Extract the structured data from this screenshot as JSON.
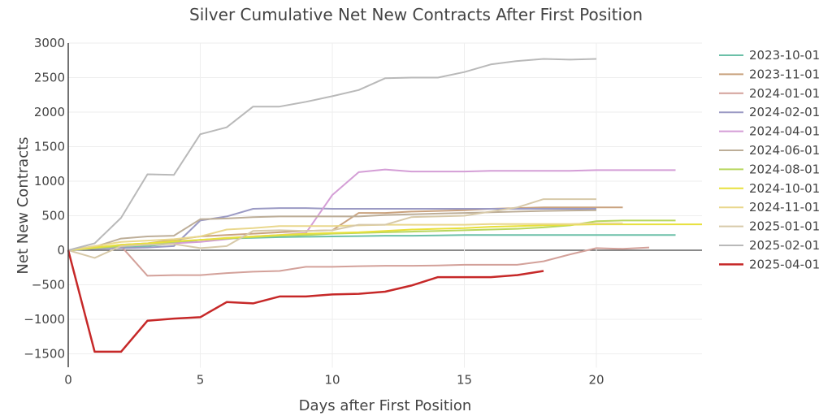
{
  "chart_data": {
    "type": "line",
    "title": "Silver Cumulative Net New Contracts After First Position",
    "xlabel": "Days after First Position",
    "ylabel": "Net New Contracts",
    "xlim": [
      0,
      24
    ],
    "ylim": [
      -1700,
      3000
    ],
    "xticks": [
      0,
      5,
      10,
      15,
      20
    ],
    "yticks": [
      -1500,
      -1000,
      -500,
      0,
      500,
      1000,
      1500,
      2000,
      2500,
      3000
    ],
    "ytick_labels": [
      "−1500",
      "−1000",
      "−500",
      "0",
      "500",
      "1000",
      "1500",
      "2000",
      "2500",
      "3000"
    ],
    "grid": true,
    "legend_position": "right",
    "series": [
      {
        "name": "2023-10-01",
        "color": "#6cc0a8",
        "values": [
          0,
          20,
          40,
          60,
          100,
          150,
          170,
          180,
          190,
          195,
          200,
          205,
          210,
          210,
          215,
          220,
          220,
          220,
          220,
          220,
          220,
          220,
          220,
          220
        ]
      },
      {
        "name": "2023-11-01",
        "color": "#c9a27e",
        "values": [
          0,
          30,
          80,
          100,
          150,
          200,
          220,
          240,
          260,
          280,
          290,
          540,
          540,
          560,
          570,
          580,
          600,
          610,
          620,
          620,
          620,
          620
        ]
      },
      {
        "name": "2024-01-01",
        "color": "#d3a19a",
        "values": [
          0,
          50,
          60,
          -370,
          -360,
          -360,
          -330,
          -310,
          -300,
          -240,
          -240,
          -230,
          -225,
          -225,
          -220,
          -210,
          -210,
          -210,
          -160,
          -60,
          30,
          20,
          40
        ]
      },
      {
        "name": "2024-02-01",
        "color": "#9b9ac4",
        "values": [
          0,
          20,
          30,
          40,
          60,
          430,
          490,
          600,
          610,
          610,
          600,
          600,
          600,
          600,
          600,
          600,
          600,
          600,
          600,
          600,
          600
        ]
      },
      {
        "name": "2024-04-01",
        "color": "#d49ed6",
        "values": [
          0,
          30,
          60,
          80,
          100,
          120,
          160,
          200,
          220,
          250,
          800,
          1130,
          1170,
          1140,
          1140,
          1140,
          1150,
          1150,
          1150,
          1150,
          1160,
          1160,
          1160,
          1160
        ]
      },
      {
        "name": "2024-06-01",
        "color": "#bdae98",
        "values": [
          0,
          50,
          170,
          200,
          210,
          450,
          460,
          480,
          490,
          490,
          490,
          490,
          510,
          520,
          530,
          540,
          550,
          560,
          570,
          575,
          580
        ]
      },
      {
        "name": "2024-08-01",
        "color": "#b8d65e",
        "values": [
          0,
          30,
          60,
          90,
          120,
          150,
          170,
          190,
          210,
          220,
          240,
          250,
          260,
          270,
          280,
          290,
          300,
          310,
          330,
          360,
          420,
          430,
          430,
          430
        ]
      },
      {
        "name": "2024-10-01",
        "color": "#e8e03c",
        "values": [
          0,
          40,
          80,
          100,
          130,
          150,
          180,
          200,
          220,
          240,
          250,
          260,
          280,
          300,
          310,
          320,
          340,
          350,
          360,
          370,
          375,
          375,
          375,
          375,
          375
        ]
      },
      {
        "name": "2024-11-01",
        "color": "#e9d78c",
        "values": [
          0,
          60,
          120,
          140,
          160,
          200,
          300,
          320,
          350,
          350,
          350,
          360,
          370,
          370,
          370,
          370,
          380,
          380,
          380,
          380,
          390,
          390
        ]
      },
      {
        "name": "2025-01-01",
        "color": "#d7c9a9",
        "values": [
          0,
          -110,
          60,
          80,
          90,
          30,
          60,
          280,
          290,
          280,
          290,
          370,
          370,
          480,
          490,
          500,
          560,
          620,
          740,
          740,
          740
        ]
      },
      {
        "name": "2025-02-01",
        "color": "#b9b9b9",
        "values": [
          0,
          100,
          470,
          1100,
          1090,
          1680,
          1780,
          2080,
          2080,
          2150,
          2230,
          2320,
          2490,
          2500,
          2500,
          2580,
          2690,
          2740,
          2770,
          2760,
          2770
        ]
      },
      {
        "name": "2025-04-01",
        "color": "#c62828",
        "values": [
          0,
          -1470,
          -1470,
          -1020,
          -990,
          -970,
          -750,
          -770,
          -670,
          -670,
          -640,
          -630,
          -600,
          -510,
          -390,
          -390,
          -390,
          -360,
          -300
        ]
      }
    ]
  }
}
